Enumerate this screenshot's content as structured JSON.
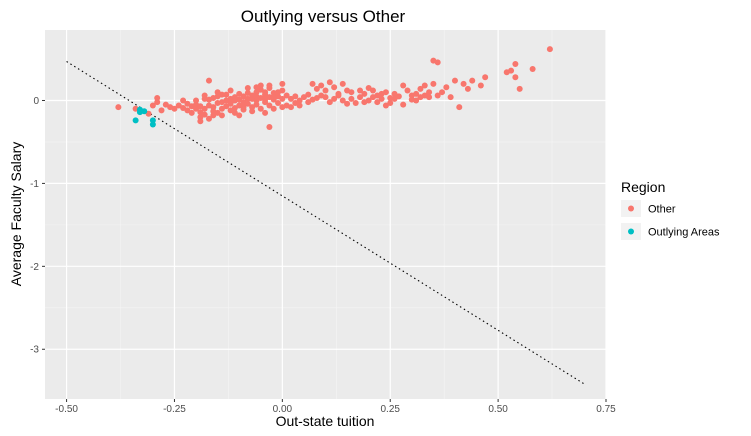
{
  "chart_data": {
    "type": "scatter",
    "title": "Outlying versus Other",
    "xlabel": "Out-state tuition",
    "ylabel": "Average Faculty Salary",
    "xlim": [
      -0.55,
      0.75
    ],
    "ylim": [
      -3.6,
      0.85
    ],
    "x_ticks": [
      -0.5,
      -0.25,
      0.0,
      0.25,
      0.5,
      0.75
    ],
    "x_tick_labels": [
      "-0.50",
      "-0.25",
      "0.00",
      "0.25",
      "0.50",
      "0.75"
    ],
    "y_ticks": [
      0,
      -1,
      -2,
      -3
    ],
    "y_tick_labels": [
      "0",
      "-1",
      "-2",
      "-3"
    ],
    "grid": true,
    "legend": {
      "title": "Region",
      "position": "right",
      "entries": [
        {
          "label": "Other",
          "color": "#F8766D"
        },
        {
          "label": "Outlying Areas",
          "color": "#00BFC4"
        }
      ]
    },
    "reference_line": {
      "style": "dotted",
      "color": "#000000",
      "x": [
        -0.5,
        0.7
      ],
      "y": [
        0.47,
        -3.42
      ]
    },
    "series": [
      {
        "name": "Other",
        "color": "#F8766D",
        "points": [
          [
            -0.38,
            -0.08
          ],
          [
            -0.34,
            -0.1
          ],
          [
            -0.31,
            -0.16
          ],
          [
            -0.3,
            -0.06
          ],
          [
            -0.29,
            0.03
          ],
          [
            -0.29,
            -0.02
          ],
          [
            -0.28,
            -0.12
          ],
          [
            -0.27,
            -0.05
          ],
          [
            -0.26,
            -0.08
          ],
          [
            -0.25,
            -0.1
          ],
          [
            -0.24,
            -0.06
          ],
          [
            -0.23,
            -0.09
          ],
          [
            -0.22,
            -0.04
          ],
          [
            -0.22,
            -0.12
          ],
          [
            -0.21,
            -0.07
          ],
          [
            -0.2,
            -0.05
          ],
          [
            -0.2,
            -0.1
          ],
          [
            -0.19,
            -0.14
          ],
          [
            -0.19,
            -0.2
          ],
          [
            -0.19,
            -0.25
          ],
          [
            -0.18,
            -0.17
          ],
          [
            -0.18,
            -0.1
          ],
          [
            -0.17,
            -0.22
          ],
          [
            -0.17,
            -0.06
          ],
          [
            -0.17,
            0.01
          ],
          [
            -0.16,
            0.03
          ],
          [
            -0.16,
            -0.13
          ],
          [
            -0.16,
            -0.08
          ],
          [
            -0.15,
            -0.15
          ],
          [
            -0.15,
            -0.03
          ],
          [
            -0.15,
            0.05
          ],
          [
            -0.14,
            -0.1
          ],
          [
            -0.14,
            -0.18
          ],
          [
            -0.13,
            -0.07
          ],
          [
            -0.13,
            0.0
          ],
          [
            -0.13,
            0.07
          ],
          [
            -0.12,
            -0.12
          ],
          [
            -0.12,
            -0.04
          ],
          [
            -0.12,
            0.02
          ],
          [
            -0.11,
            -0.09
          ],
          [
            -0.11,
            -0.15
          ],
          [
            -0.11,
            0.04
          ],
          [
            -0.1,
            -0.06
          ],
          [
            -0.1,
            0.01
          ],
          [
            -0.1,
            0.08
          ],
          [
            -0.1,
            -0.18
          ],
          [
            -0.09,
            -0.02
          ],
          [
            -0.09,
            0.05
          ],
          [
            -0.09,
            -0.11
          ],
          [
            -0.08,
            0.09
          ],
          [
            -0.08,
            -0.04
          ],
          [
            -0.08,
            0.02
          ],
          [
            -0.07,
            -0.08
          ],
          [
            -0.07,
            0.06
          ],
          [
            -0.07,
            -0.13
          ],
          [
            -0.06,
            0.0
          ],
          [
            -0.06,
            0.1
          ],
          [
            -0.06,
            -0.05
          ],
          [
            -0.05,
            0.03
          ],
          [
            -0.05,
            -0.1
          ],
          [
            -0.05,
            0.13
          ],
          [
            -0.04,
            -0.02
          ],
          [
            -0.04,
            0.07
          ],
          [
            -0.04,
            -0.15
          ],
          [
            -0.03,
            0.04
          ],
          [
            -0.03,
            0.15
          ],
          [
            -0.03,
            -0.06
          ],
          [
            -0.02,
            0.01
          ],
          [
            -0.02,
            0.09
          ],
          [
            -0.02,
            -0.1
          ],
          [
            -0.01,
            0.05
          ],
          [
            -0.01,
            -0.03
          ],
          [
            0.0,
            0.02
          ],
          [
            0.0,
            -0.08
          ],
          [
            0.0,
            0.12
          ],
          [
            -0.2,
            0.0
          ],
          [
            -0.18,
            0.02
          ],
          [
            -0.15,
            0.1
          ],
          [
            -0.12,
            0.12
          ],
          [
            -0.08,
            0.15
          ],
          [
            -0.05,
            0.18
          ],
          [
            -0.03,
            0.18
          ],
          [
            -0.01,
            0.1
          ],
          [
            -0.17,
            0.24
          ],
          [
            -0.14,
            -0.02
          ],
          [
            -0.11,
            0.0
          ],
          [
            -0.07,
            0.02
          ],
          [
            -0.04,
            0.01
          ],
          [
            -0.02,
            0.04
          ],
          [
            0.01,
            0.06
          ],
          [
            -0.03,
            -0.32
          ],
          [
            0.01,
            -0.06
          ],
          [
            0.02,
            -0.08
          ],
          [
            0.02,
            0.02
          ],
          [
            0.03,
            0.05
          ],
          [
            0.03,
            -0.03
          ],
          [
            0.04,
            0.0
          ],
          [
            0.05,
            0.04
          ],
          [
            0.06,
            -0.02
          ],
          [
            0.06,
            0.07
          ],
          [
            0.07,
            0.01
          ],
          [
            0.08,
            0.03
          ],
          [
            0.07,
            0.2
          ],
          [
            0.08,
            0.14
          ],
          [
            0.09,
            0.18
          ],
          [
            0.1,
            0.12
          ],
          [
            0.1,
            0.04
          ],
          [
            0.11,
            0.22
          ],
          [
            0.12,
            0.16
          ],
          [
            0.13,
            0.08
          ],
          [
            0.14,
            0.2
          ],
          [
            0.14,
            0.0
          ],
          [
            0.15,
            -0.04
          ],
          [
            0.15,
            0.12
          ],
          [
            0.16,
            0.02
          ],
          [
            0.17,
            -0.03
          ],
          [
            0.18,
            0.04
          ],
          [
            0.19,
            0.08
          ],
          [
            0.2,
            0.0
          ],
          [
            0.2,
            0.15
          ],
          [
            0.21,
            0.04
          ],
          [
            0.22,
            -0.02
          ],
          [
            0.22,
            0.06
          ],
          [
            0.23,
            0.02
          ],
          [
            0.24,
            0.1
          ],
          [
            0.25,
            0.03
          ],
          [
            0.25,
            -0.03
          ],
          [
            0.26,
            0.08
          ],
          [
            0.27,
            0.05
          ],
          [
            0.28,
            -0.05
          ],
          [
            0.29,
            0.12
          ],
          [
            0.3,
            0.06
          ],
          [
            0.3,
            0.01
          ],
          [
            0.31,
            0.0
          ],
          [
            0.32,
            0.14
          ],
          [
            0.33,
            0.18
          ],
          [
            0.34,
            0.1
          ],
          [
            0.35,
            0.2
          ],
          [
            0.34,
            0.04
          ],
          [
            0.36,
            0.06
          ],
          [
            0.38,
            0.16
          ],
          [
            0.4,
            0.24
          ],
          [
            0.42,
            0.2
          ],
          [
            0.43,
            0.14
          ],
          [
            0.44,
            0.24
          ],
          [
            0.46,
            0.18
          ],
          [
            0.47,
            0.28
          ],
          [
            0.41,
            -0.08
          ],
          [
            0.35,
            0.48
          ],
          [
            0.36,
            0.46
          ],
          [
            0.52,
            0.34
          ],
          [
            0.53,
            0.36
          ],
          [
            0.54,
            0.28
          ],
          [
            0.54,
            0.44
          ],
          [
            0.55,
            0.14
          ],
          [
            0.58,
            0.38
          ],
          [
            0.62,
            0.62
          ],
          [
            -0.18,
            0.06
          ],
          [
            -0.06,
            0.16
          ],
          [
            0.0,
            0.2
          ],
          [
            0.12,
            0.02
          ],
          [
            0.18,
            0.12
          ],
          [
            0.24,
            -0.06
          ],
          [
            0.28,
            0.18
          ],
          [
            0.31,
            0.08
          ],
          [
            0.33,
            0.06
          ],
          [
            0.37,
            0.1
          ],
          [
            0.39,
            0.04
          ],
          [
            -0.23,
            0.0
          ],
          [
            -0.21,
            -0.15
          ],
          [
            -0.19,
            -0.07
          ],
          [
            -0.16,
            -0.18
          ],
          [
            -0.14,
            0.07
          ],
          [
            -0.09,
            -0.08
          ],
          [
            -0.06,
            0.05
          ],
          [
            -0.04,
            0.1
          ],
          [
            0.04,
            -0.06
          ],
          [
            0.09,
            0.06
          ],
          [
            0.11,
            -0.02
          ],
          [
            0.13,
            0.06
          ],
          [
            0.16,
            0.1
          ],
          [
            0.19,
            -0.02
          ],
          [
            0.21,
            0.12
          ],
          [
            0.23,
            0.08
          ],
          [
            0.26,
            0.02
          ],
          [
            0.32,
            0.04
          ]
        ]
      },
      {
        "name": "Outlying Areas",
        "color": "#00BFC4",
        "points": [
          [
            -0.34,
            -0.24
          ],
          [
            -0.33,
            -0.14
          ],
          [
            -0.33,
            -0.11
          ],
          [
            -0.32,
            -0.13
          ],
          [
            -0.3,
            -0.24
          ],
          [
            -0.3,
            -0.29
          ]
        ]
      }
    ]
  }
}
